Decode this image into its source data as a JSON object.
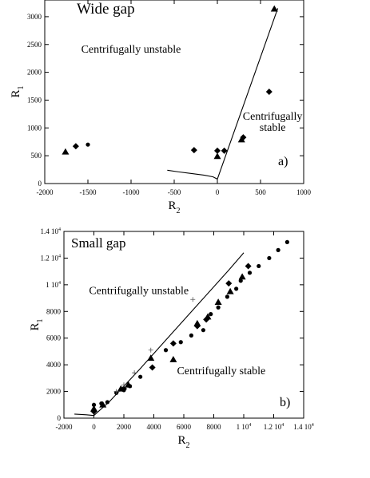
{
  "chart_data": [
    {
      "type": "scatter",
      "title": "Wide gap",
      "panel_label": "a)",
      "xlabel": "R",
      "xlabel_sub": "2",
      "ylabel": "R",
      "ylabel_sub": "1",
      "xlim": [
        -2000,
        1000
      ],
      "ylim": [
        0,
        3300
      ],
      "xticks": [
        -2000,
        -1500,
        -1000,
        -500,
        0,
        500,
        1000
      ],
      "xtick_labels": [
        "-2000",
        "-1500",
        "-1000",
        "-500",
        "0",
        "500",
        "1000"
      ],
      "yticks": [
        0,
        500,
        1000,
        1500,
        2000,
        2500,
        3000
      ],
      "ytick_labels": [
        "0",
        "500",
        "1000",
        "1500",
        "2000",
        "2500",
        "3000"
      ],
      "grid": false,
      "annotations": [
        {
          "text": "Centrifugally unstable",
          "x": -1000,
          "y": 2350
        },
        {
          "text": "Centrifugally",
          "x": 640,
          "y": 1150
        },
        {
          "text": "stable",
          "x": 640,
          "y": 950
        }
      ],
      "curve": {
        "name": "",
        "x": [
          -580,
          -450,
          -300,
          -150,
          -50,
          0,
          700
        ],
        "y": [
          240,
          210,
          180,
          150,
          120,
          80,
          3150
        ]
      },
      "series": [
        {
          "name": "",
          "marker": "triangle",
          "x": [
            -1760,
            0,
            280,
            660
          ],
          "y": [
            570,
            490,
            790,
            3140
          ]
        },
        {
          "name": "",
          "marker": "diamond",
          "x": [
            -1640,
            -270,
            0,
            80,
            300,
            600
          ],
          "y": [
            670,
            600,
            590,
            590,
            830,
            1650
          ]
        },
        {
          "name": "",
          "marker": "circle",
          "x": [
            -1500
          ],
          "y": [
            700
          ]
        }
      ]
    },
    {
      "type": "scatter",
      "title": "Small gap",
      "panel_label": "b)",
      "xlabel": "R",
      "xlabel_sub": "2",
      "ylabel": "R",
      "ylabel_sub": "1",
      "xlim": [
        -2000,
        14000
      ],
      "ylim": [
        0,
        14000
      ],
      "xticks": [
        -2000,
        0,
        2000,
        4000,
        6000,
        8000,
        10000,
        12000,
        14000
      ],
      "xtick_labels": [
        "-2000",
        "0",
        "2000",
        "4000",
        "6000",
        "8000",
        "1 10",
        "1.2 10",
        "1.4 10"
      ],
      "xtick_exp": [
        "",
        "",
        "",
        "",
        "",
        "",
        "4",
        "4",
        "4"
      ],
      "yticks": [
        0,
        2000,
        4000,
        6000,
        8000,
        10000,
        12000,
        14000
      ],
      "ytick_labels": [
        "0",
        "2000",
        "4000",
        "6000",
        "8000",
        "1 10",
        "1.2 10",
        "1.4 10"
      ],
      "ytick_exp": [
        "",
        "",
        "",
        "",
        "",
        "4",
        "4",
        "4"
      ],
      "grid": false,
      "annotations": [
        {
          "text": "Centrifugally unstable",
          "x": 3000,
          "y": 9300
        },
        {
          "text": "Centrifugally stable",
          "x": 8500,
          "y": 3300
        }
      ],
      "curve": {
        "name": "",
        "x": [
          -1300,
          -500,
          0,
          1000,
          3000,
          5000,
          7000,
          9000,
          10000
        ],
        "y": [
          300,
          250,
          200,
          1200,
          3600,
          6100,
          8600,
          11100,
          12400
        ]
      },
      "series": [
        {
          "name": "",
          "marker": "circle",
          "x": [
            0,
            500,
            900,
            1500,
            2000,
            2400,
            3100,
            4800,
            5800,
            6500,
            7300,
            7800,
            8300,
            8900,
            9500,
            9800,
            10400,
            11000,
            11700,
            12300,
            12900
          ],
          "y": [
            1000,
            1100,
            1200,
            1900,
            2100,
            2400,
            3100,
            5100,
            5700,
            6200,
            6600,
            7800,
            8300,
            9100,
            9700,
            10300,
            10900,
            11400,
            12000,
            12600,
            13200
          ]
        },
        {
          "name": "",
          "marker": "triangle",
          "x": [
            0,
            600,
            1800,
            2300,
            3800,
            5300,
            6900,
            7600,
            8300,
            9100,
            9900
          ],
          "y": [
            700,
            1000,
            2200,
            2500,
            4500,
            4400,
            7100,
            7600,
            8700,
            9500,
            10600
          ]
        },
        {
          "name": "",
          "marker": "diamond",
          "x": [
            0,
            2000,
            3900,
            5300,
            6900,
            7500,
            9000,
            10300
          ],
          "y": [
            500,
            2200,
            3800,
            5600,
            6900,
            7400,
            10100,
            11400
          ]
        },
        {
          "name": "",
          "marker": "plus",
          "x": [
            1500,
            2000,
            2700,
            3800,
            6600
          ],
          "y": [
            2000,
            2500,
            3400,
            5100,
            8900
          ]
        }
      ]
    }
  ]
}
